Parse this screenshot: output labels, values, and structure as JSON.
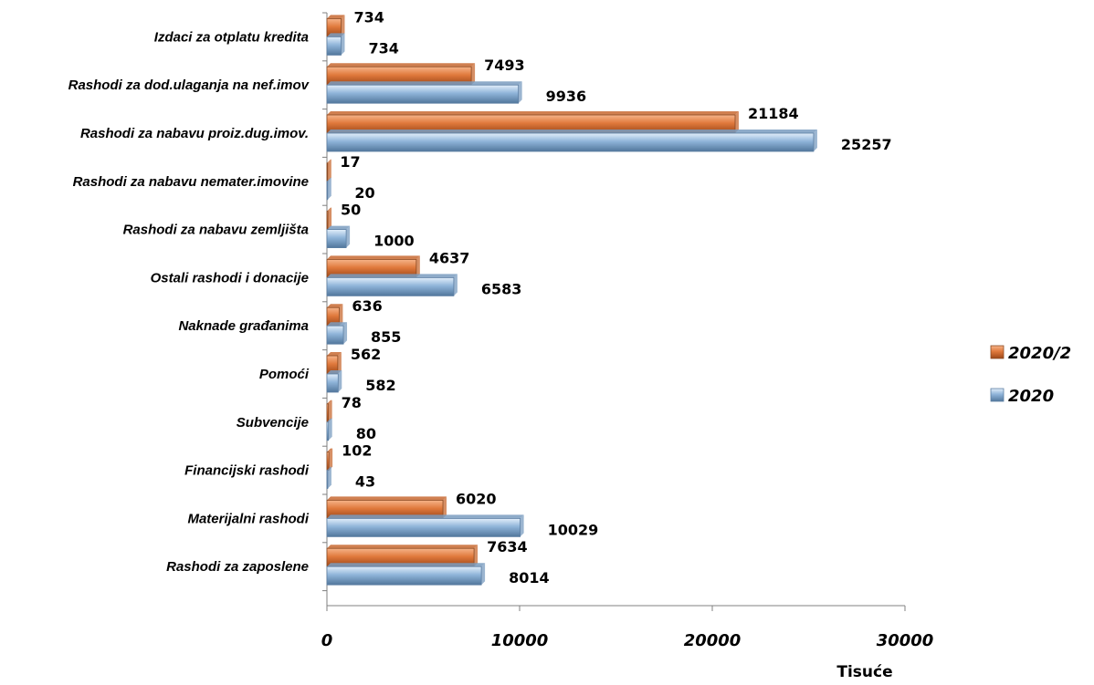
{
  "chart_data": {
    "type": "bar",
    "orientation": "horizontal",
    "categories": [
      "Izdaci za otplatu kredita",
      "Rashodi za dod.ulaganja na nef.imov",
      "Rashodi za nabavu proiz.dug.imov.",
      "Rashodi za nabavu nemater.imovine",
      "Rashodi za nabavu zemljišta",
      "Ostali rashodi i donacije",
      "Naknade građanima",
      "Pomoći",
      "Subvencije",
      "Financijski rashodi",
      "Materijalni rashodi",
      "Rashodi za zaposlene"
    ],
    "series": [
      {
        "name": "2020/2",
        "color": "#e0793c",
        "values": [
          734,
          7493,
          21184,
          17,
          50,
          4637,
          636,
          562,
          78,
          102,
          6020,
          7634
        ],
        "value_labels": [
          "734",
          "7493",
          "21184",
          "17",
          "50",
          "4637",
          "636",
          "562",
          "78",
          "102",
          "6020",
          "7634"
        ]
      },
      {
        "name": "2020",
        "color": "#8fb4d9",
        "values": [
          734,
          9936,
          25257,
          20,
          1000,
          6583,
          855,
          582,
          80,
          43,
          10029,
          8014
        ],
        "value_labels": [
          "734",
          "9936",
          "25257",
          "20",
          "1000",
          "6583",
          "855",
          "582",
          "80",
          "43",
          "10029",
          "8014"
        ]
      }
    ],
    "x_ticks": [
      "0",
      "10000",
      "20000",
      "30000"
    ],
    "xlim": [
      0,
      30000
    ],
    "xlabel": "Tisuće",
    "legend_position": "right",
    "grid": false
  }
}
